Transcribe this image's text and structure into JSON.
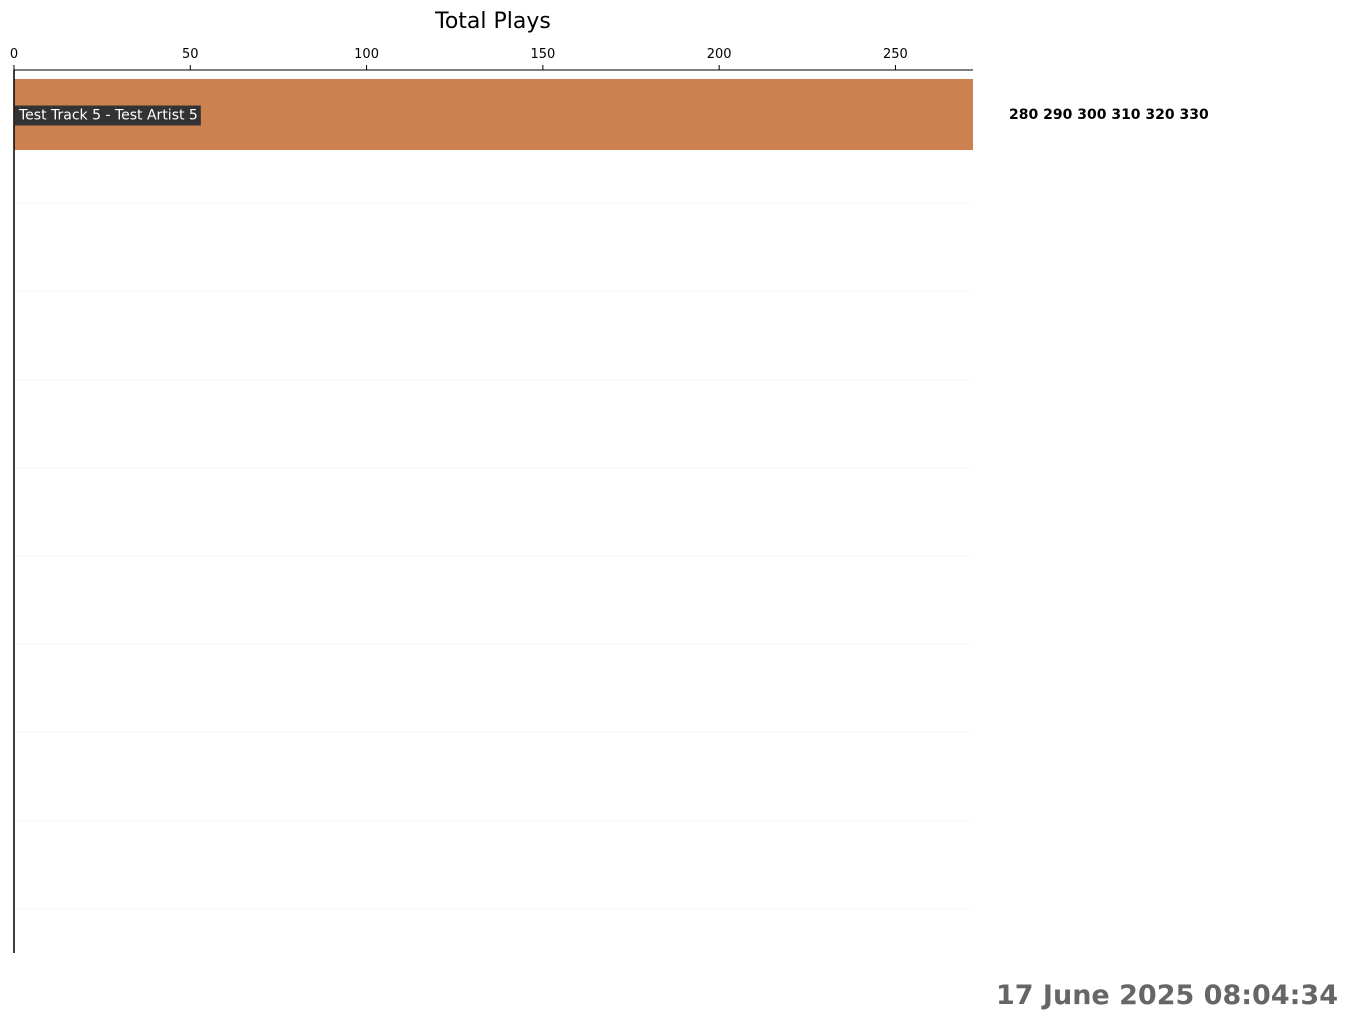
{
  "chart_data": {
    "type": "bar",
    "orientation": "horizontal",
    "title": "Total Plays",
    "xlabel": "",
    "ylabel": "",
    "xlim": [
      0,
      272
    ],
    "x_ticks": [
      0,
      50,
      100,
      150,
      200,
      250
    ],
    "categories": [
      "Test Track 5 - Test Artist 5"
    ],
    "values": [
      272
    ],
    "bar_colors": [
      "#cd8150"
    ],
    "value_labels": [
      "280",
      "290",
      "300",
      "310",
      "320",
      "330"
    ],
    "grid": "horizontal dotted",
    "timestamp": "17 June 2025 08:04:34"
  },
  "colors": {
    "bar": "#cd8150",
    "label_box": "#333333",
    "grid": "#dddddd",
    "timestamp": "#666666"
  }
}
